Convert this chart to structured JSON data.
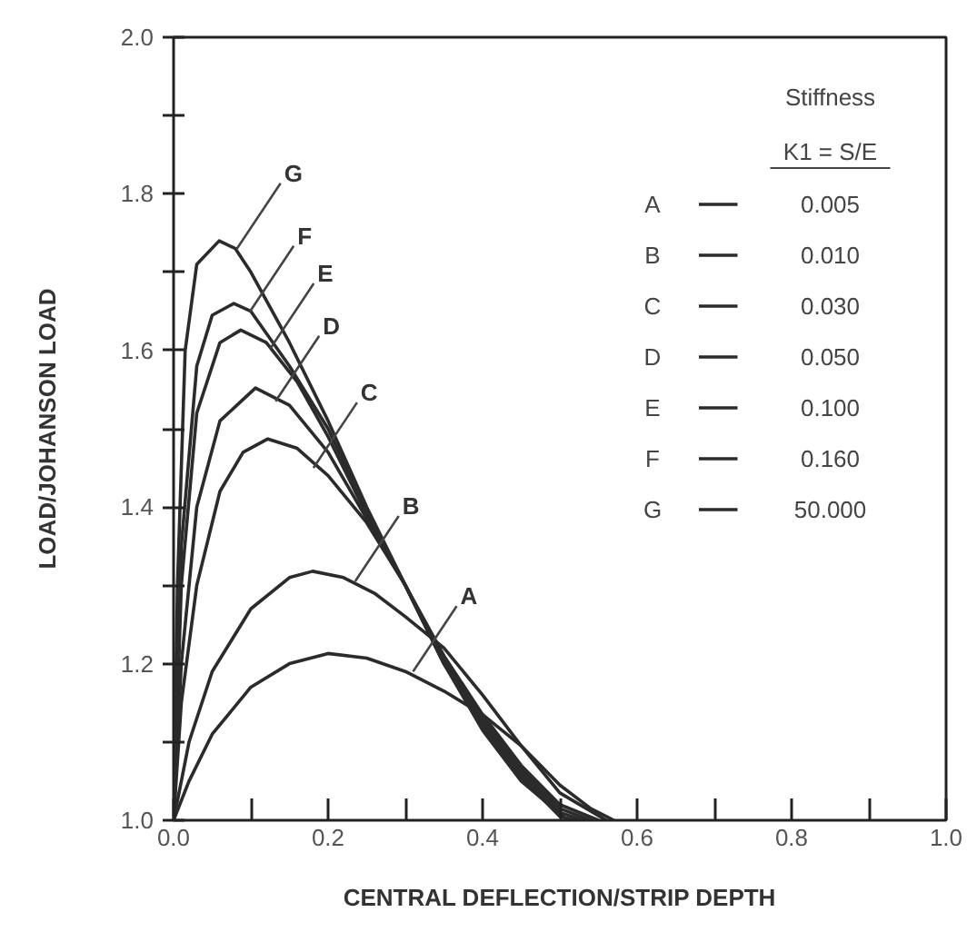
{
  "chart_data": {
    "type": "line",
    "xlabel": "CENTRAL DEFLECTION/STRIP DEPTH",
    "ylabel": "LOAD/JOHANSON LOAD",
    "legend_title": "Stiffness",
    "legend": "top right",
    "grid": false,
    "marker": "none",
    "line_style": "solid",
    "xlim": [
      0,
      1
    ],
    "ylim": [
      1,
      2
    ],
    "xticks": [
      {
        "value": 0,
        "label": "0.0"
      },
      {
        "value": 0.1,
        "label": null
      },
      {
        "value": 0.2,
        "label": "0.2"
      },
      {
        "value": 0.3,
        "label": null
      },
      {
        "value": 0.4,
        "label": "0.4"
      },
      {
        "value": 0.5,
        "label": null
      },
      {
        "value": 0.6,
        "label": "0.6"
      },
      {
        "value": 0.7,
        "label": null
      },
      {
        "value": 0.8,
        "label": "0.8"
      },
      {
        "value": 0.9,
        "label": null
      },
      {
        "value": 1,
        "label": "1.0"
      }
    ],
    "yticks": [
      {
        "value": 1,
        "label": "1.0"
      },
      {
        "value": 1.1,
        "label": null
      },
      {
        "value": 1.2,
        "label": "1.2"
      },
      {
        "value": 1.3,
        "label": null
      },
      {
        "value": 1.4,
        "label": "1.4"
      },
      {
        "value": 1.5,
        "label": null
      },
      {
        "value": 1.6,
        "label": "1.6"
      },
      {
        "value": 1.7,
        "label": null
      },
      {
        "value": 1.8,
        "label": "1.8"
      },
      {
        "value": 1.9,
        "label": null
      },
      {
        "value": 2,
        "label": "2.0"
      }
    ],
    "series": [
      {
        "name": "A",
        "color": "#2b2b2b",
        "x": [
          0,
          0.02,
          0.05,
          0.1,
          0.15,
          0.2,
          0.25,
          0.3,
          0.35,
          0.4,
          0.45,
          0.5,
          0.54,
          0.57
        ],
        "values": [
          1,
          1.05,
          1.11,
          1.17,
          1.2,
          1.213,
          1.207,
          1.19,
          1.165,
          1.135,
          1.095,
          1.045,
          1.015,
          1
        ]
      },
      {
        "name": "B",
        "color": "#2b2b2b",
        "x": [
          0,
          0.02,
          0.05,
          0.1,
          0.15,
          0.18,
          0.22,
          0.26,
          0.3,
          0.35,
          0.4,
          0.45,
          0.5,
          0.56
        ],
        "values": [
          1,
          1.1,
          1.19,
          1.27,
          1.31,
          1.318,
          1.31,
          1.29,
          1.26,
          1.22,
          1.16,
          1.095,
          1.035,
          1
        ]
      },
      {
        "name": "C",
        "color": "#2b2b2b",
        "x": [
          0,
          0.01,
          0.03,
          0.06,
          0.09,
          0.122,
          0.16,
          0.2,
          0.25,
          0.3,
          0.35,
          0.4,
          0.45,
          0.5,
          0.55
        ],
        "values": [
          1,
          1.15,
          1.3,
          1.42,
          1.47,
          1.487,
          1.475,
          1.44,
          1.38,
          1.3,
          1.21,
          1.135,
          1.07,
          1.02,
          1
        ]
      },
      {
        "name": "D",
        "color": "#2b2b2b",
        "x": [
          0,
          0.01,
          0.03,
          0.06,
          0.106,
          0.15,
          0.2,
          0.25,
          0.3,
          0.35,
          0.4,
          0.45,
          0.5,
          0.54
        ],
        "values": [
          1,
          1.2,
          1.4,
          1.51,
          1.552,
          1.53,
          1.47,
          1.385,
          1.3,
          1.205,
          1.13,
          1.065,
          1.015,
          1
        ]
      },
      {
        "name": "E",
        "color": "#2b2b2b",
        "x": [
          0,
          0.01,
          0.03,
          0.06,
          0.087,
          0.12,
          0.16,
          0.2,
          0.25,
          0.3,
          0.35,
          0.4,
          0.45,
          0.5,
          0.53
        ],
        "values": [
          1,
          1.3,
          1.52,
          1.61,
          1.626,
          1.61,
          1.56,
          1.49,
          1.39,
          1.3,
          1.2,
          1.125,
          1.06,
          1.01,
          1
        ]
      },
      {
        "name": "F",
        "color": "#2b2b2b",
        "x": [
          0,
          0.01,
          0.03,
          0.05,
          0.078,
          0.1,
          0.15,
          0.2,
          0.25,
          0.3,
          0.35,
          0.4,
          0.45,
          0.5,
          0.52
        ],
        "values": [
          1,
          1.35,
          1.58,
          1.645,
          1.66,
          1.65,
          1.58,
          1.5,
          1.395,
          1.3,
          1.2,
          1.12,
          1.055,
          1.005,
          1
        ]
      },
      {
        "name": "G",
        "color": "#2b2b2b",
        "x": [
          0,
          0.005,
          0.015,
          0.03,
          0.059,
          0.08,
          0.1,
          0.15,
          0.2,
          0.25,
          0.3,
          0.35,
          0.4,
          0.45,
          0.51
        ],
        "values": [
          1,
          1.3,
          1.6,
          1.71,
          1.74,
          1.73,
          1.7,
          1.61,
          1.51,
          1.4,
          1.3,
          1.2,
          1.115,
          1.05,
          1
        ]
      }
    ],
    "annotations": [
      "K1 = S/E",
      "0.005",
      "0.010",
      "0.030",
      "0.050",
      "0.100",
      "0.160",
      "50.000",
      {
        "text": "A",
        "x": 0.31,
        "y": 1.19
      },
      {
        "text": "B",
        "x": 0.235,
        "y": 1.305
      },
      {
        "text": "C",
        "x": 0.181,
        "y": 1.45
      },
      {
        "text": "D",
        "x": 0.132,
        "y": 1.535
      },
      {
        "text": "E",
        "x": 0.125,
        "y": 1.602
      },
      {
        "text": "F",
        "x": 0.099,
        "y": 1.65
      },
      {
        "text": "G",
        "x": 0.082,
        "y": 1.73
      }
    ]
  }
}
